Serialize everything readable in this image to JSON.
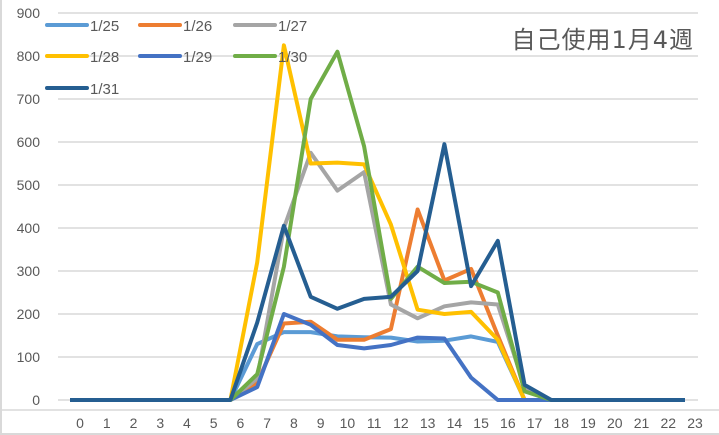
{
  "chart_data": {
    "type": "line",
    "title": "自己使用1月4週",
    "xlabel": "",
    "ylabel": "",
    "ylim": [
      0,
      900
    ],
    "yticks": [
      0,
      100,
      200,
      300,
      400,
      500,
      600,
      700,
      800,
      900
    ],
    "grid": true,
    "legend_position": "top-left (inside plot)",
    "categories": [
      "0",
      "1",
      "2",
      "3",
      "4",
      "5",
      "6",
      "7",
      "8",
      "9",
      "10",
      "11",
      "12",
      "13",
      "14",
      "15",
      "16",
      "17",
      "18",
      "19",
      "20",
      "21",
      "22",
      "23"
    ],
    "series": [
      {
        "name": "1/25",
        "color": "#5B9BD5",
        "values": [
          0,
          0,
          0,
          0,
          0,
          0,
          0,
          130,
          158,
          158,
          148,
          146,
          145,
          136,
          138,
          148,
          135,
          0,
          0,
          0,
          0,
          0,
          0,
          0
        ]
      },
      {
        "name": "1/26",
        "color": "#ED7D31",
        "values": [
          0,
          0,
          0,
          0,
          0,
          0,
          0,
          40,
          178,
          182,
          140,
          140,
          165,
          443,
          278,
          305,
          150,
          0,
          0,
          0,
          0,
          0,
          0,
          0
        ]
      },
      {
        "name": "1/27",
        "color": "#A5A5A5",
        "values": [
          0,
          0,
          0,
          0,
          0,
          0,
          0,
          50,
          400,
          575,
          487,
          530,
          222,
          190,
          218,
          227,
          222,
          30,
          0,
          0,
          0,
          0,
          0,
          0
        ]
      },
      {
        "name": "1/28",
        "color": "#FFC000",
        "values": [
          0,
          0,
          0,
          0,
          0,
          0,
          0,
          320,
          825,
          550,
          552,
          548,
          408,
          210,
          200,
          205,
          140,
          0,
          0,
          0,
          0,
          0,
          0,
          0
        ]
      },
      {
        "name": "1/29",
        "color": "#4472C4",
        "values": [
          0,
          0,
          0,
          0,
          0,
          0,
          0,
          30,
          200,
          175,
          128,
          120,
          128,
          145,
          143,
          52,
          0,
          0,
          0,
          0,
          0,
          0,
          0,
          0
        ]
      },
      {
        "name": "1/30",
        "color": "#70AD47",
        "values": [
          0,
          0,
          0,
          0,
          0,
          0,
          0,
          60,
          310,
          700,
          810,
          590,
          235,
          310,
          272,
          275,
          250,
          20,
          0,
          0,
          0,
          0,
          0,
          0
        ]
      },
      {
        "name": "1/31",
        "color": "#255E91",
        "values": [
          0,
          0,
          0,
          0,
          0,
          0,
          0,
          180,
          405,
          240,
          212,
          235,
          240,
          300,
          595,
          265,
          370,
          35,
          0,
          0,
          0,
          0,
          0,
          0
        ]
      }
    ]
  }
}
